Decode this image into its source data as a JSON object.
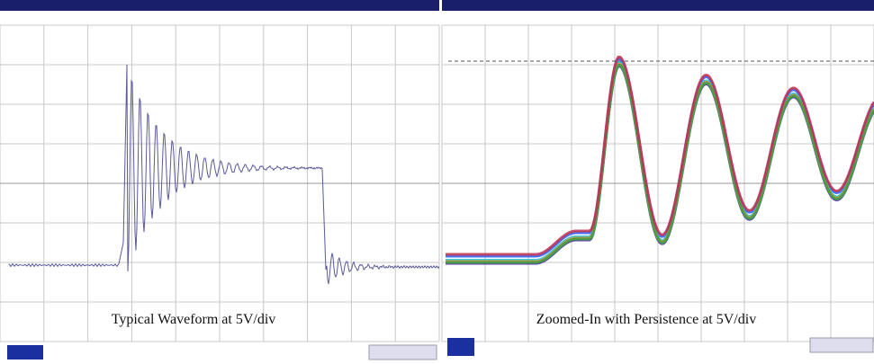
{
  "panels": [
    {
      "caption": "Typical Waveform at 5V/div"
    },
    {
      "caption": "Zoomed-In with Persistence at 5V/div"
    }
  ]
}
